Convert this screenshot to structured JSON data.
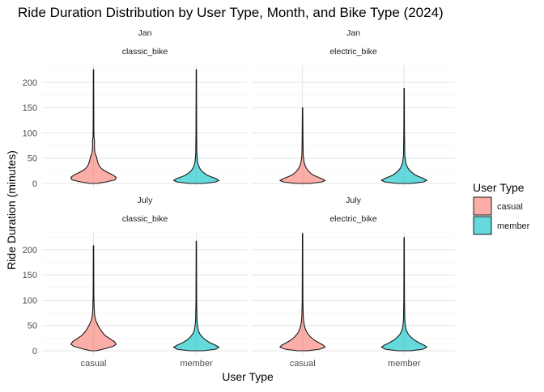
{
  "chart_data": {
    "type": "violin",
    "title": "Ride Duration Distribution by User Type, Month, and Bike Type (2024)",
    "xlabel": "User Type",
    "ylabel": "Ride Duration (minutes)",
    "categories": [
      "casual",
      "member"
    ],
    "yticks": [
      0,
      50,
      100,
      150,
      200
    ],
    "ylim": [
      -8,
      235
    ],
    "grid": true,
    "legend": {
      "title": "User Type",
      "position": "right",
      "items": [
        {
          "label": "casual",
          "color": "#F8766D"
        },
        {
          "label": "member",
          "color": "#00BFC4"
        }
      ]
    },
    "panels": [
      {
        "month": "Jan",
        "bike": "classic_bike",
        "violins": [
          {
            "category": "casual",
            "max": 225,
            "profile": [
              [
                0,
                0.15
              ],
              [
                3,
                0.55
              ],
              [
                7,
                0.95
              ],
              [
                12,
                1.0
              ],
              [
                17,
                0.85
              ],
              [
                22,
                0.62
              ],
              [
                27,
                0.42
              ],
              [
                32,
                0.3
              ],
              [
                38,
                0.22
              ],
              [
                45,
                0.17
              ],
              [
                52,
                0.14
              ],
              [
                58,
                0.08
              ],
              [
                65,
                0.05
              ],
              [
                75,
                0.04
              ],
              [
                85,
                0.045
              ],
              [
                92,
                0.02
              ],
              [
                110,
                0.015
              ],
              [
                225,
                0.008
              ]
            ]
          },
          {
            "category": "member",
            "max": 225,
            "profile": [
              [
                0,
                0.3
              ],
              [
                3,
                0.85
              ],
              [
                6,
                1.0
              ],
              [
                10,
                0.85
              ],
              [
                14,
                0.6
              ],
              [
                18,
                0.42
              ],
              [
                24,
                0.25
              ],
              [
                30,
                0.15
              ],
              [
                38,
                0.08
              ],
              [
                45,
                0.05
              ],
              [
                60,
                0.025
              ],
              [
                100,
                0.015
              ],
              [
                225,
                0.008
              ]
            ]
          }
        ]
      },
      {
        "month": "Jan",
        "bike": "electric_bike",
        "violins": [
          {
            "category": "casual",
            "max": 150,
            "profile": [
              [
                0,
                0.3
              ],
              [
                3,
                0.85
              ],
              [
                6,
                1.0
              ],
              [
                10,
                0.82
              ],
              [
                14,
                0.6
              ],
              [
                18,
                0.42
              ],
              [
                24,
                0.27
              ],
              [
                30,
                0.17
              ],
              [
                38,
                0.09
              ],
              [
                45,
                0.06
              ],
              [
                55,
                0.03
              ],
              [
                80,
                0.02
              ],
              [
                150,
                0.008
              ]
            ]
          },
          {
            "category": "member",
            "max": 188,
            "profile": [
              [
                0,
                0.3
              ],
              [
                3,
                0.85
              ],
              [
                6,
                1.0
              ],
              [
                10,
                0.85
              ],
              [
                14,
                0.62
              ],
              [
                18,
                0.45
              ],
              [
                24,
                0.28
              ],
              [
                30,
                0.17
              ],
              [
                38,
                0.09
              ],
              [
                45,
                0.06
              ],
              [
                55,
                0.03
              ],
              [
                100,
                0.015
              ],
              [
                188,
                0.008
              ]
            ]
          }
        ]
      },
      {
        "month": "July",
        "bike": "classic_bike",
        "violins": [
          {
            "category": "casual",
            "max": 208,
            "profile": [
              [
                0,
                0.12
              ],
              [
                4,
                0.5
              ],
              [
                9,
                0.88
              ],
              [
                13,
                1.0
              ],
              [
                18,
                0.92
              ],
              [
                24,
                0.72
              ],
              [
                30,
                0.52
              ],
              [
                37,
                0.38
              ],
              [
                45,
                0.26
              ],
              [
                52,
                0.18
              ],
              [
                60,
                0.1
              ],
              [
                70,
                0.05
              ],
              [
                85,
                0.03
              ],
              [
                110,
                0.015
              ],
              [
                208,
                0.008
              ]
            ]
          },
          {
            "category": "member",
            "max": 217,
            "profile": [
              [
                0,
                0.3
              ],
              [
                3,
                0.85
              ],
              [
                7,
                1.0
              ],
              [
                11,
                0.85
              ],
              [
                16,
                0.6
              ],
              [
                21,
                0.42
              ],
              [
                27,
                0.27
              ],
              [
                33,
                0.16
              ],
              [
                40,
                0.09
              ],
              [
                48,
                0.06
              ],
              [
                60,
                0.03
              ],
              [
                100,
                0.015
              ],
              [
                217,
                0.008
              ]
            ]
          }
        ]
      },
      {
        "month": "July",
        "bike": "electric_bike",
        "violins": [
          {
            "category": "casual",
            "max": 232,
            "profile": [
              [
                0,
                0.22
              ],
              [
                3,
                0.75
              ],
              [
                7,
                1.0
              ],
              [
                11,
                0.92
              ],
              [
                16,
                0.72
              ],
              [
                21,
                0.52
              ],
              [
                27,
                0.36
              ],
              [
                33,
                0.24
              ],
              [
                40,
                0.15
              ],
              [
                48,
                0.09
              ],
              [
                58,
                0.05
              ],
              [
                70,
                0.03
              ],
              [
                100,
                0.015
              ],
              [
                232,
                0.008
              ]
            ]
          },
          {
            "category": "member",
            "max": 224,
            "profile": [
              [
                0,
                0.28
              ],
              [
                3,
                0.82
              ],
              [
                7,
                1.0
              ],
              [
                11,
                0.88
              ],
              [
                16,
                0.65
              ],
              [
                21,
                0.46
              ],
              [
                27,
                0.3
              ],
              [
                33,
                0.18
              ],
              [
                40,
                0.1
              ],
              [
                48,
                0.06
              ],
              [
                60,
                0.03
              ],
              [
                100,
                0.015
              ],
              [
                224,
                0.008
              ]
            ]
          }
        ]
      }
    ]
  }
}
